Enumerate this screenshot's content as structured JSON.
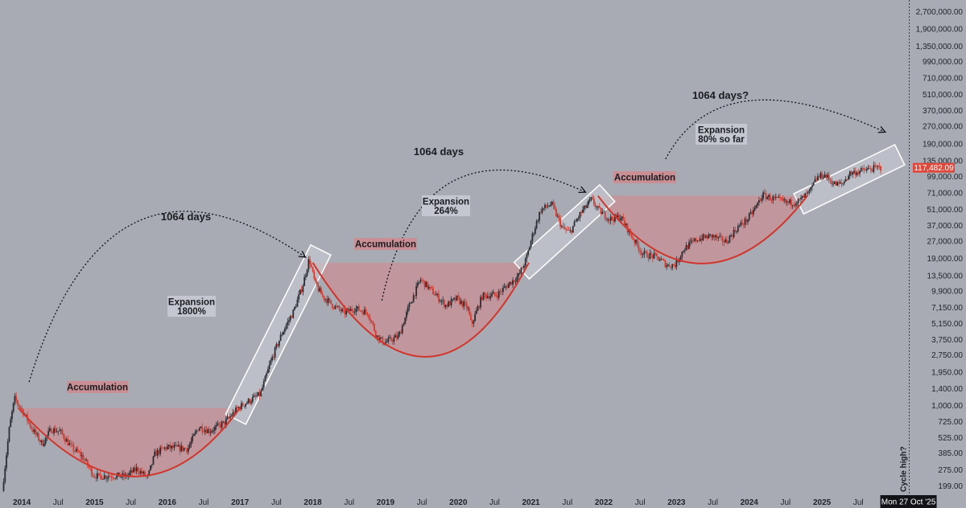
{
  "colors": {
    "background": "#a8abb4",
    "up_candle": "#2b2d33",
    "down_candle": "#d63a2f",
    "accumulation_fill": "#c98f94",
    "curve": "#d1352b",
    "expansion_box_fill": "#c4c7cf",
    "box_stroke": "#ffffff",
    "price_tag": "#e0483c",
    "date_tag": "#131417"
  },
  "chart_data": {
    "type": "candlestick",
    "y_scale": "log",
    "y_tick_labels": [
      "2,700,000.00",
      "1,900,000.00",
      "1,350,000.00",
      "990,000.00",
      "710,000.00",
      "510,000.00",
      "370,000.00",
      "270,000.00",
      "190,000.00",
      "135,000.00",
      "99,000.00",
      "71,000.00",
      "51,000.00",
      "37,000.00",
      "27,000.00",
      "19,000.00",
      "13,500.00",
      "9,900.00",
      "7,150.00",
      "5,150.00",
      "3,750.00",
      "2,750.00",
      "1,950.00",
      "1,400.00",
      "1,000.00",
      "725.00",
      "525.00",
      "385.00",
      "275.00",
      "199.00"
    ],
    "y_tick_values": [
      2700000,
      1900000,
      1350000,
      990000,
      710000,
      510000,
      370000,
      270000,
      190000,
      135000,
      99000,
      71000,
      51000,
      37000,
      27000,
      19000,
      13500,
      9900,
      7150,
      5150,
      3750,
      2750,
      1950,
      1400,
      1000,
      725,
      525,
      385,
      275,
      199
    ],
    "x_tick_labels": [
      "2014",
      "Jul",
      "2015",
      "Jul",
      "2016",
      "Jul",
      "2017",
      "Jul",
      "2018",
      "Jul",
      "2019",
      "Jul",
      "2020",
      "Jul",
      "2021",
      "Jul",
      "2022",
      "Jul",
      "2023",
      "Jul",
      "2024",
      "Jul",
      "2025",
      "Jul",
      "Jul"
    ],
    "x_tick_values": [
      2014.0,
      2014.5,
      2015.0,
      2015.5,
      2016.0,
      2016.5,
      2017.0,
      2017.5,
      2018.0,
      2018.5,
      2019.0,
      2019.5,
      2020.0,
      2020.5,
      2021.0,
      2021.5,
      2022.0,
      2022.5,
      2023.0,
      2023.5,
      2024.0,
      2024.5,
      2025.0,
      2025.5,
      2026.5
    ],
    "x_tick_is_year": [
      true,
      false,
      true,
      false,
      true,
      false,
      true,
      false,
      true,
      false,
      true,
      false,
      true,
      false,
      true,
      false,
      true,
      false,
      true,
      false,
      true,
      false,
      true,
      false,
      false
    ],
    "xlim": [
      2013.7,
      2026.98
    ],
    "ylim": [
      160,
      3400000
    ],
    "price_path": [
      [
        2013.75,
        180
      ],
      [
        2013.85,
        650
      ],
      [
        2013.92,
        1150
      ],
      [
        2014.05,
        850
      ],
      [
        2014.15,
        640
      ],
      [
        2014.3,
        460
      ],
      [
        2014.42,
        620
      ],
      [
        2014.55,
        590
      ],
      [
        2014.7,
        430
      ],
      [
        2014.85,
        360
      ],
      [
        2015.0,
        250
      ],
      [
        2015.08,
        240
      ],
      [
        2015.25,
        245
      ],
      [
        2015.45,
        240
      ],
      [
        2015.6,
        280
      ],
      [
        2015.75,
        235
      ],
      [
        2015.85,
        380
      ],
      [
        2016.0,
        430
      ],
      [
        2016.3,
        420
      ],
      [
        2016.45,
        650
      ],
      [
        2016.6,
        600
      ],
      [
        2016.8,
        700
      ],
      [
        2017.0,
        960
      ],
      [
        2017.15,
        1100
      ],
      [
        2017.3,
        1250
      ],
      [
        2017.45,
        2500
      ],
      [
        2017.6,
        4300
      ],
      [
        2017.75,
        6500
      ],
      [
        2017.88,
        11000
      ],
      [
        2017.97,
        19000
      ],
      [
        2018.05,
        11500
      ],
      [
        2018.15,
        9000
      ],
      [
        2018.3,
        7400
      ],
      [
        2018.45,
        6400
      ],
      [
        2018.6,
        7000
      ],
      [
        2018.78,
        6400
      ],
      [
        2018.9,
        4000
      ],
      [
        2019.0,
        3500
      ],
      [
        2019.2,
        4000
      ],
      [
        2019.35,
        7500
      ],
      [
        2019.5,
        12500
      ],
      [
        2019.65,
        10000
      ],
      [
        2019.85,
        7400
      ],
      [
        2020.0,
        8500
      ],
      [
        2020.15,
        7000
      ],
      [
        2020.2,
        5000
      ],
      [
        2020.35,
        9000
      ],
      [
        2020.55,
        9200
      ],
      [
        2020.7,
        11200
      ],
      [
        2020.85,
        13500
      ],
      [
        2020.95,
        18500
      ],
      [
        2021.05,
        32000
      ],
      [
        2021.15,
        50000
      ],
      [
        2021.3,
        57000
      ],
      [
        2021.45,
        35000
      ],
      [
        2021.55,
        32000
      ],
      [
        2021.7,
        47000
      ],
      [
        2021.85,
        62000
      ],
      [
        2021.95,
        50000
      ],
      [
        2022.1,
        42000
      ],
      [
        2022.25,
        44000
      ],
      [
        2022.4,
        30000
      ],
      [
        2022.55,
        21000
      ],
      [
        2022.75,
        19500
      ],
      [
        2022.9,
        16500
      ],
      [
        2023.0,
        16800
      ],
      [
        2023.12,
        23000
      ],
      [
        2023.3,
        28000
      ],
      [
        2023.5,
        30000
      ],
      [
        2023.7,
        26500
      ],
      [
        2023.85,
        35000
      ],
      [
        2024.0,
        42000
      ],
      [
        2024.1,
        52000
      ],
      [
        2024.2,
        68000
      ],
      [
        2024.35,
        63000
      ],
      [
        2024.55,
        58000
      ],
      [
        2024.7,
        60000
      ],
      [
        2024.85,
        72000
      ],
      [
        2024.95,
        96000
      ],
      [
        2025.05,
        102000
      ],
      [
        2025.2,
        84000
      ],
      [
        2025.3,
        85000
      ],
      [
        2025.4,
        105000
      ],
      [
        2025.55,
        110000
      ],
      [
        2025.7,
        115000
      ],
      [
        2025.82,
        117482
      ]
    ],
    "last_price_label": "117,482.09",
    "date_label": "Mon 27 Oct '25",
    "cursor_x": 2026.2,
    "cycle_label": "Cycle high?",
    "annotations": {
      "accumulation_label": "Accumulation",
      "expansion_1_line1": "Expansion",
      "expansion_1_line2": "1800%",
      "expansion_2_line1": "Expansion",
      "expansion_2_line2": "264%",
      "expansion_3_line1": "Expansion",
      "expansion_3_line2": "80% so far",
      "days_label": "1064 days",
      "days_label_q": "1064 days?"
    },
    "accumulation_zones": [
      {
        "x0": 2013.95,
        "x1": 2017.0,
        "level": 950,
        "bottom_x": 2015.55,
        "bottom_level": 240
      },
      {
        "x0": 2018.0,
        "x1": 2020.97,
        "level": 17500,
        "bottom_x": 2019.55,
        "bottom_level": 2650
      },
      {
        "x0": 2021.92,
        "x1": 2024.8,
        "level": 67000,
        "bottom_x": 2023.35,
        "bottom_level": 17200
      }
    ],
    "expansion_boxes": [
      {
        "x0": 2017.0,
        "x1": 2018.05,
        "y_low": 900,
        "y_high": 19000
      },
      {
        "x0": 2020.97,
        "x1": 2021.95,
        "y_low": 17000,
        "y_high": 62000
      },
      {
        "x0": 2024.8,
        "x1": 2025.95,
        "y_low": 62000,
        "y_high": 140000
      }
    ],
    "arrows": [
      {
        "from": [
          2014.1,
          1600
        ],
        "ctrl": [
          2015.2,
          290000
        ],
        "to": [
          2017.9,
          19500
        ]
      },
      {
        "from": [
          2018.95,
          8200
        ],
        "ctrl": [
          2019.5,
          330000
        ],
        "to": [
          2021.75,
          72000
        ]
      },
      {
        "from": [
          2022.85,
          140000
        ],
        "ctrl": [
          2023.6,
          1100000
        ],
        "to": [
          2025.87,
          240000
        ]
      }
    ]
  }
}
